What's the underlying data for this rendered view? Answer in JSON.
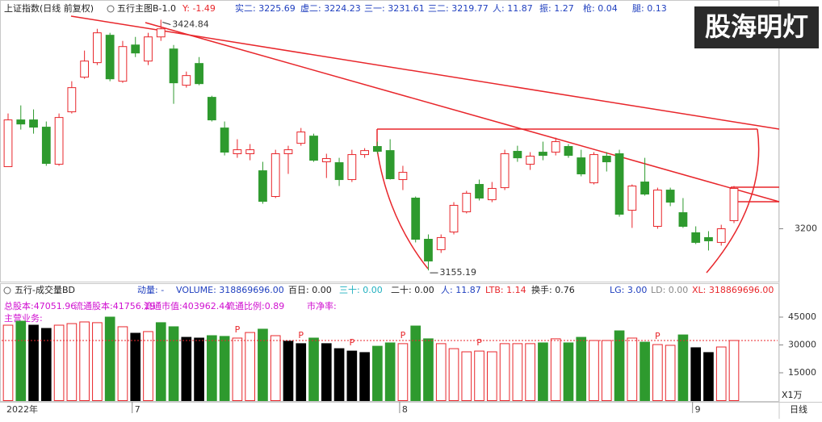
{
  "header": {
    "title": "上证指数(日线 前复权)",
    "indicator": "五行主图B-1.0",
    "y": "Y: -1.49",
    "stats": [
      "实二: 3225.69",
      "虚二: 3224.23",
      "三一: 3231.61",
      "三二: 3219.77",
      "人: 11.87",
      "振: 1.27",
      "枪: 0.04",
      "腿: 0.13"
    ],
    "watermark": "股海明灯"
  },
  "volume_header": {
    "title": "五行-成交量BD",
    "momentum": "动量: -",
    "volume": "VOLUME: 318869696.00",
    "hundred": "百日: 0.00",
    "thirty": "三十: 0.00",
    "twenty": "二十: 0.00",
    "ren": "人: 11.87",
    "ltb": "LTB: 1.14",
    "turnover": "换手: 0.76",
    "lg": "LG: 3.00",
    "ld": "LD: 0.00",
    "xl": "XL: 318869696.00"
  },
  "info": {
    "total_shares": "总股本:47051.96",
    "float_shares": "流通股本:41756.19",
    "float_value": "流通市值:403962.44",
    "float_ratio": "流通比例:0.89",
    "pb": "市净率:",
    "business": "主营业务:"
  },
  "footer": {
    "period": "日线",
    "unit": "X1万"
  },
  "chart_data": [
    {
      "type": "candlestick",
      "ylim": [
        3144,
        3427
      ],
      "yticks": [
        3200
      ],
      "up_color": "#e8262b",
      "down_color": "#2e9a2e",
      "open": [
        3266.8,
        3317.1,
        3317.1,
        3309.3,
        3269.4,
        3325.8,
        3363.1,
        3378.7,
        3408.2,
        3358.7,
        3397.7,
        3380.4,
        3406.4,
        3393.4,
        3354.4,
        3377.8,
        3341.4,
        3308.4,
        3280.7,
        3280.7,
        3262.4,
        3234.7,
        3280.7,
        3291.9,
        3299.7,
        3272.0,
        3271.1,
        3252.9,
        3279.8,
        3288.5,
        3284.1,
        3252.9,
        3233.0,
        3188.7,
        3177.5,
        3196.5,
        3218.2,
        3247.7,
        3231.2,
        3244.2,
        3283.3,
        3269.4,
        3282.4,
        3282.4,
        3288.5,
        3276.3,
        3249.4,
        3278.1,
        3280.7,
        3219.9,
        3250.3,
        3202.6,
        3241.6,
        3217.3,
        3195.7,
        3190.5,
        3185.3,
        3208.7
      ],
      "high": [
        3324.0,
        3332.7,
        3328.4,
        3315.4,
        3324.0,
        3358.7,
        3391.7,
        3415.1,
        3410.8,
        3402.1,
        3406.4,
        3410.8,
        3424.84,
        3397.7,
        3369.1,
        3384.7,
        3343.1,
        3315.4,
        3296.3,
        3291.1,
        3272.0,
        3285.0,
        3289.3,
        3308.4,
        3302.3,
        3280.7,
        3276.3,
        3285.0,
        3286.7,
        3293.7,
        3296.3,
        3267.7,
        3234.7,
        3193.9,
        3193.9,
        3228.6,
        3240.8,
        3252.9,
        3250.3,
        3285.0,
        3289.3,
        3282.4,
        3293.7,
        3298.0,
        3291.1,
        3285.0,
        3282.4,
        3282.4,
        3285.0,
        3247.7,
        3276.3,
        3244.2,
        3244.2,
        3233.0,
        3202.6,
        3197.4,
        3204.3,
        3246.0
      ],
      "low": [
        3266.8,
        3306.7,
        3302.3,
        3267.7,
        3267.7,
        3324.0,
        3361.3,
        3376.1,
        3358.7,
        3357.0,
        3384.7,
        3376.1,
        3402.1,
        3334.4,
        3351.8,
        3354.4,
        3315.4,
        3278.9,
        3276.3,
        3273.7,
        3226.9,
        3233.0,
        3259.0,
        3289.3,
        3272.0,
        3254.6,
        3246.0,
        3250.3,
        3276.3,
        3280.7,
        3252.9,
        3241.6,
        3185.3,
        3155.19,
        3174.0,
        3193.9,
        3216.5,
        3230.4,
        3228.6,
        3241.6,
        3272.0,
        3263.3,
        3273.7,
        3278.9,
        3276.3,
        3256.4,
        3247.7,
        3261.6,
        3213.0,
        3200.9,
        3235.6,
        3200.0,
        3224.3,
        3200.9,
        3183.5,
        3176.6,
        3181.8,
        3206.1
      ],
      "close": [
        3317.1,
        3312.7,
        3309.3,
        3270.3,
        3319.7,
        3351.8,
        3380.4,
        3410.8,
        3361.3,
        3396.0,
        3389.1,
        3406.4,
        3415.1,
        3357.0,
        3364.8,
        3356.1,
        3317.1,
        3282.4,
        3285.0,
        3285.0,
        3229.5,
        3280.7,
        3285.0,
        3304.1,
        3273.7,
        3275.5,
        3252.9,
        3279.8,
        3284.1,
        3283.3,
        3253.8,
        3260.7,
        3188.7,
        3165.3,
        3190.5,
        3225.2,
        3238.2,
        3233.0,
        3243.4,
        3280.7,
        3276.3,
        3278.1,
        3278.9,
        3293.7,
        3278.9,
        3259.0,
        3279.8,
        3272.0,
        3215.6,
        3246.0,
        3237.3,
        3241.6,
        3228.6,
        3202.6,
        3185.3,
        3187.0,
        3200.0,
        3243.4
      ],
      "labeled_high": 12,
      "labeled_low": 33
    },
    {
      "type": "bar",
      "ylim": [
        0,
        50650
      ],
      "yticks": [
        15000,
        30000,
        45000
      ],
      "ref_line": 32400,
      "up_color": "#e8262b",
      "values": [
        40650,
        42800,
        40650,
        38900,
        40650,
        41500,
        42400,
        42000,
        45000,
        39800,
        36300,
        37200,
        42000,
        39800,
        34100,
        33700,
        35000,
        34600,
        33700,
        36700,
        38500,
        35000,
        32000,
        30700,
        33700,
        30700,
        28000,
        26700,
        25900,
        29300,
        31100,
        30700,
        40200,
        33300,
        30700,
        28000,
        26300,
        26700,
        26300,
        30700,
        30700,
        30700,
        31100,
        33300,
        31100,
        34100,
        32400,
        32400,
        37600,
        33700,
        31500,
        30200,
        29800,
        35400,
        28500,
        25900,
        28900,
        32400
      ],
      "colors": [
        "#e8262b",
        "#2e9a2e",
        "#000000",
        "#000000",
        "#e8262b",
        "#e8262b",
        "#e8262b",
        "#e8262b",
        "#2e9a2e",
        "#e8262b",
        "#000000",
        "#e8262b",
        "#2e9a2e",
        "#2e9a2e",
        "#000000",
        "#000000",
        "#2e9a2e",
        "#2e9a2e",
        "#e8262b",
        "#e8262b",
        "#2e9a2e",
        "#e8262b",
        "#000000",
        "#000000",
        "#2e9a2e",
        "#000000",
        "#000000",
        "#000000",
        "#000000",
        "#2e9a2e",
        "#2e9a2e",
        "#e8262b",
        "#2e9a2e",
        "#2e9a2e",
        "#e8262b",
        "#e8262b",
        "#e8262b",
        "#e8262b",
        "#e8262b",
        "#e8262b",
        "#e8262b",
        "#e8262b",
        "#2e9a2e",
        "#e8262b",
        "#2e9a2e",
        "#2e9a2e",
        "#e8262b",
        "#e8262b",
        "#2e9a2e",
        "#e8262b",
        "#2e9a2e",
        "#e8262b",
        "#e8262b",
        "#2e9a2e",
        "#000000",
        "#000000",
        "#e8262b",
        "#e8262b"
      ],
      "markers": [
        {
          "index": 18,
          "label": "P"
        },
        {
          "index": 23,
          "label": "P"
        },
        {
          "index": 27,
          "label": "P"
        },
        {
          "index": 31,
          "label": "P"
        },
        {
          "index": 37,
          "label": "P"
        },
        {
          "index": 51,
          "label": "P"
        }
      ],
      "x_labels": [
        {
          "index": 0,
          "label": "2022年"
        },
        {
          "index": 10,
          "label": "7"
        },
        {
          "index": 31,
          "label": "8"
        },
        {
          "index": 54,
          "label": "9"
        }
      ]
    }
  ]
}
